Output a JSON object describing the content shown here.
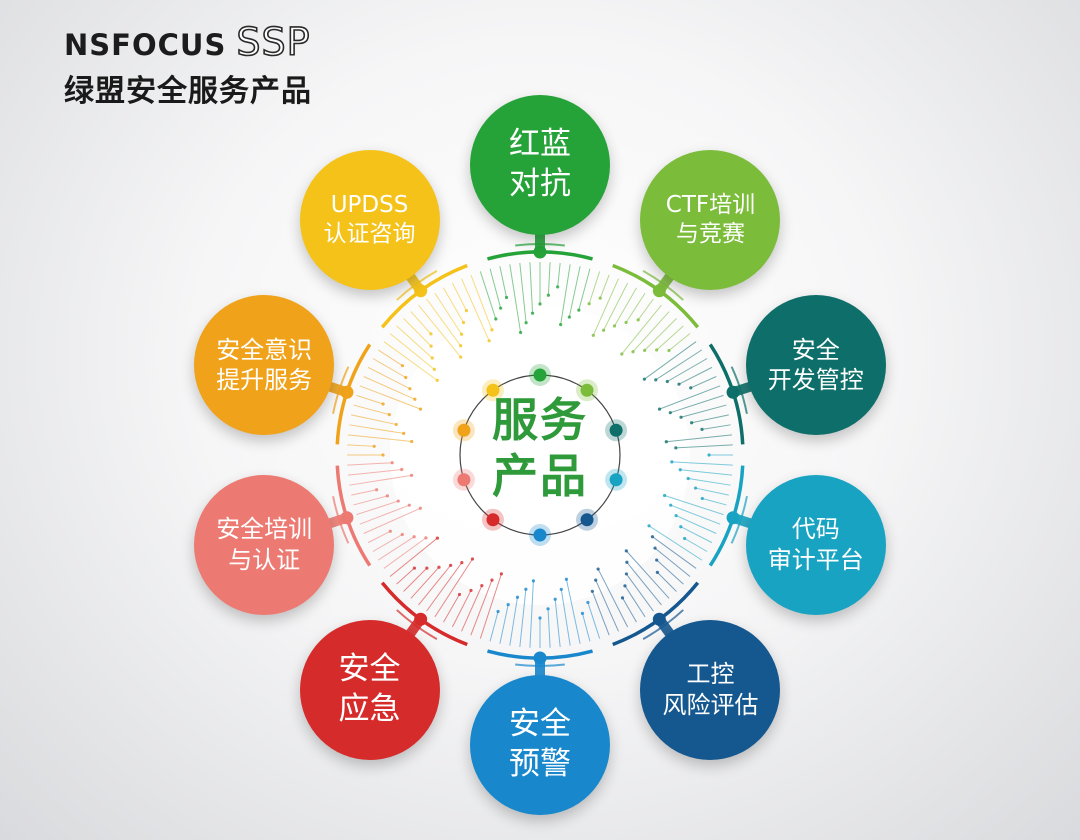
{
  "header": {
    "brand": "NSFOCUS",
    "product": "SSP",
    "subtitle": "绿盟安全服务产品"
  },
  "center": {
    "line1": "服务",
    "line2": "产品"
  },
  "nodes": [
    {
      "line1": "红蓝",
      "line2": "对抗",
      "color": "#25a339"
    },
    {
      "line1": "CTF培训",
      "line2": "与竞赛",
      "color": "#7cbc3b"
    },
    {
      "line1": "安全",
      "line2": "开发管控",
      "color": "#0e6f6a"
    },
    {
      "line1": "代码",
      "line2": "审计平台",
      "color": "#18a3c2"
    },
    {
      "line1": "工控",
      "line2": "风险评估",
      "color": "#15578f"
    },
    {
      "line1": "安全",
      "line2": "预警",
      "color": "#1887cc"
    },
    {
      "line1": "安全",
      "line2": "应急",
      "color": "#d62b2b"
    },
    {
      "line1": "安全培训",
      "line2": "与认证",
      "color": "#ec7a72"
    },
    {
      "line1": "安全意识",
      "line2": "提升服务",
      "color": "#efa21a"
    },
    {
      "line1": "UPDSS",
      "line2": "认证咨询",
      "color": "#f4c218"
    }
  ]
}
